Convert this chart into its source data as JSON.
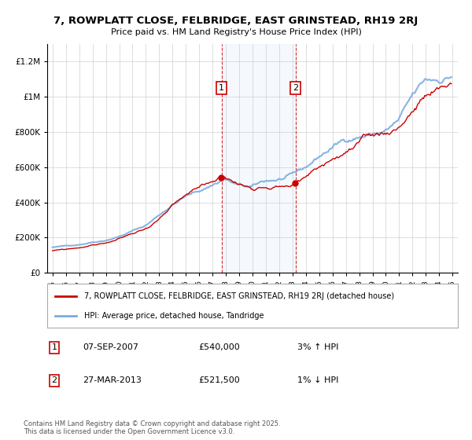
{
  "title": "7, ROWPLATT CLOSE, FELBRIDGE, EAST GRINSTEAD, RH19 2RJ",
  "subtitle": "Price paid vs. HM Land Registry's House Price Index (HPI)",
  "ylim": [
    0,
    1300000
  ],
  "yticks": [
    0,
    200000,
    400000,
    600000,
    800000,
    1000000,
    1200000
  ],
  "hpi_color": "#7aace0",
  "price_color": "#cc0000",
  "sale1_date": "07-SEP-2007",
  "sale1_price": 540000,
  "sale1_hpi_diff": "3% ↑ HPI",
  "sale2_date": "27-MAR-2013",
  "sale2_price": 521500,
  "sale2_hpi_diff": "1% ↓ HPI",
  "legend_line1": "7, ROWPLATT CLOSE, FELBRIDGE, EAST GRINSTEAD, RH19 2RJ (detached house)",
  "legend_line2": "HPI: Average price, detached house, Tandridge",
  "footnote": "Contains HM Land Registry data © Crown copyright and database right 2025.\nThis data is licensed under the Open Government Licence v3.0.",
  "sale1_x": 2007.67,
  "sale2_x": 2013.23,
  "shade_xmin": 2007.67,
  "shade_xmax": 2013.23,
  "xlim_min": 1994.6,
  "xlim_max": 2025.4
}
